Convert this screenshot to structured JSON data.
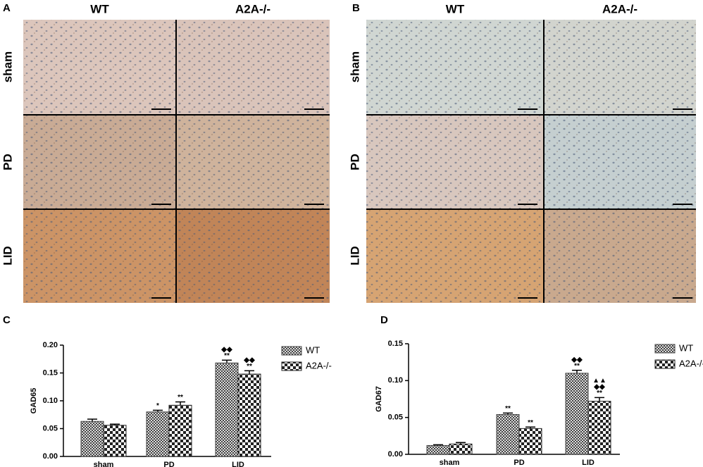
{
  "image_panels": [
    {
      "label": "A",
      "columns": [
        "WT",
        "A2A-/-"
      ],
      "rows": [
        "sham",
        "PD",
        "LID"
      ]
    },
    {
      "label": "B",
      "columns": [
        "WT",
        "A2A-/-"
      ],
      "rows": [
        "sham",
        "PD",
        "LID"
      ]
    }
  ],
  "chart_data": [
    {
      "type": "bar",
      "label": "C",
      "ylabel": "GAD65",
      "categories": [
        "sham",
        "PD",
        "LID"
      ],
      "ylim": [
        0,
        0.2
      ],
      "yticks": [
        {
          "value": 0,
          "label": "0.00"
        },
        0.05,
        {
          "value": 0.1,
          "label": "0.10"
        },
        0.15,
        {
          "value": 0.2,
          "label": "0.20"
        }
      ],
      "series": [
        {
          "name": "WT",
          "color": "#444444",
          "values": [
            0.063,
            0.08,
            0.168
          ],
          "errors": [
            0.004,
            0.003,
            0.005
          ],
          "annotations": [
            null,
            [
              "*"
            ],
            [
              "◆◆",
              "**"
            ]
          ]
        },
        {
          "name": "A2A-/-",
          "color": "#222222",
          "values": [
            0.056,
            0.092,
            0.148
          ],
          "errors": [
            0.002,
            0.006,
            0.006
          ],
          "annotations": [
            null,
            [
              "**"
            ],
            [
              "◆◆",
              "**"
            ]
          ]
        }
      ]
    },
    {
      "type": "bar",
      "label": "D",
      "ylabel": "GAD67",
      "categories": [
        "sham",
        "PD",
        "LID"
      ],
      "ylim": [
        0,
        0.15
      ],
      "yticks": [
        {
          "value": 0,
          "label": "0.00"
        },
        0.05,
        {
          "value": 0.1,
          "label": "0.10"
        },
        0.15
      ],
      "series": [
        {
          "name": "WT",
          "color": "#444444",
          "values": [
            0.012,
            0.054,
            0.11
          ],
          "errors": [
            0.001,
            0.002,
            0.004
          ],
          "annotations": [
            null,
            [
              "**"
            ],
            [
              "◆◆",
              "**"
            ]
          ]
        },
        {
          "name": "A2A-/-",
          "color": "#222222",
          "values": [
            0.014,
            0.035,
            0.072
          ],
          "errors": [
            0.002,
            0.002,
            0.005
          ],
          "annotations": [
            null,
            [
              "**"
            ],
            [
              "▲▲",
              "◆◆",
              "**"
            ]
          ]
        }
      ]
    }
  ]
}
